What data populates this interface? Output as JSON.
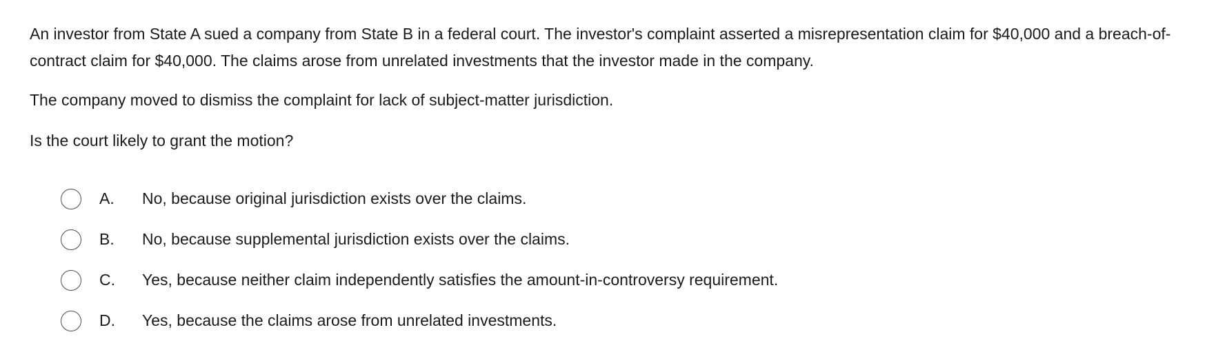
{
  "question": {
    "paragraphs": [
      "An investor from State A sued a company from State B in a federal court.  The investor's complaint asserted a misrepresentation claim for $40,000 and a breach-of-contract claim for $40,000.  The claims arose from unrelated investments that the investor made in the company.",
      "The company moved to dismiss the complaint for lack of subject-matter jurisdiction.",
      "Is the court likely to grant the motion?"
    ]
  },
  "options": [
    {
      "letter": "A.",
      "text": "No, because original jurisdiction exists over the claims."
    },
    {
      "letter": "B.",
      "text": "No, because supplemental jurisdiction exists over the claims."
    },
    {
      "letter": "C.",
      "text": "Yes, because neither claim independently satisfies the amount-in-controversy requirement."
    },
    {
      "letter": "D.",
      "text": "Yes, because the claims arose from unrelated investments."
    }
  ]
}
